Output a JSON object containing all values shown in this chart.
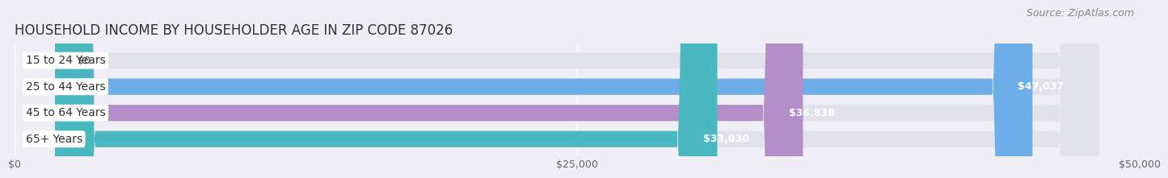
{
  "title": "HOUSEHOLD INCOME BY HOUSEHOLDER AGE IN ZIP CODE 87026",
  "source": "Source: ZipAtlas.com",
  "categories": [
    "15 to 24 Years",
    "25 to 44 Years",
    "45 to 64 Years",
    "65+ Years"
  ],
  "values": [
    0,
    47037,
    36838,
    33030
  ],
  "bar_colors": [
    "#f0a0a8",
    "#6daee8",
    "#b48ec8",
    "#4ab8c0"
  ],
  "value_labels": [
    "$0",
    "$47,037",
    "$36,838",
    "$33,030"
  ],
  "xlim": [
    0,
    50000
  ],
  "xticks": [
    0,
    25000,
    50000
  ],
  "xticklabels": [
    "$0",
    "$25,000",
    "$50,000"
  ],
  "background_color": "#eeeef4",
  "bar_background": "#e2e2ea",
  "bar_height": 0.62,
  "title_fontsize": 12,
  "source_fontsize": 9,
  "label_fontsize": 10,
  "value_fontsize": 9
}
